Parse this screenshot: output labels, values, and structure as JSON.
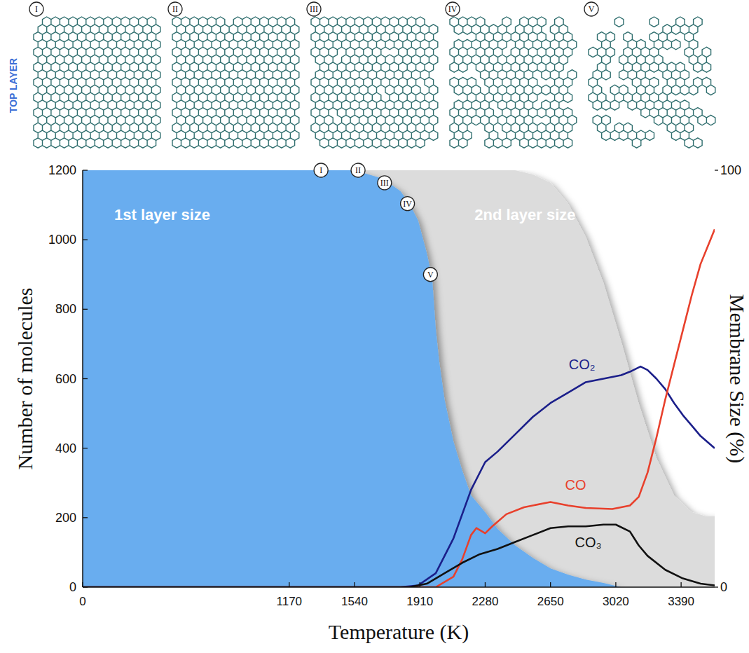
{
  "chart_data": {
    "type": "line",
    "side_label": "TOP LAYER",
    "x_label": "Temperature (K)",
    "y_label": "Number of molecules",
    "y2_label": "Membrane Size (%)",
    "xlim": [
      0,
      3580
    ],
    "xticks": [
      0,
      1170,
      1540,
      1910,
      2280,
      2650,
      3020,
      3390
    ],
    "ylim": [
      0,
      1200
    ],
    "yticks": [
      0,
      200,
      400,
      600,
      800,
      1000,
      1200
    ],
    "y2lim": [
      0,
      100
    ],
    "y2ticks": [
      0,
      100
    ],
    "grid": false,
    "series": [
      {
        "name": "2nd layer size",
        "type": "area",
        "axis": "y2",
        "color": "#dcdcdc",
        "x": [
          0,
          1170,
          1540,
          1700,
          1800,
          1850,
          1900,
          1950,
          1980,
          2000,
          2020,
          2050,
          2100,
          2150,
          2200,
          2280,
          2350,
          2450,
          2550,
          2650,
          2750,
          2850,
          2950,
          3050,
          3150,
          3250,
          3350,
          3450,
          3530,
          3580
        ],
        "values": [
          100,
          100,
          100,
          100,
          100,
          100,
          100,
          100,
          100,
          100,
          100,
          100,
          100,
          100,
          100,
          100,
          100,
          100,
          99,
          97,
          92,
          84,
          73,
          59,
          44,
          31,
          22,
          18,
          17,
          17
        ]
      },
      {
        "name": "1st layer size",
        "type": "area",
        "axis": "y2",
        "color": "#69adef",
        "x": [
          0,
          1170,
          1540,
          1700,
          1800,
          1850,
          1900,
          1950,
          1980,
          2000,
          2020,
          2050,
          2100,
          2150,
          2200,
          2280,
          2350,
          2450,
          2550,
          2650,
          2750,
          2850,
          2950,
          3050,
          3150,
          3250,
          3350,
          3450,
          3530,
          3580
        ],
        "values": [
          100,
          100,
          100,
          98,
          95,
          92,
          88,
          80,
          74,
          62,
          54,
          45,
          35,
          28,
          22,
          18,
          14,
          10,
          7,
          4.5,
          3,
          1.8,
          1,
          0,
          0,
          0,
          0,
          0,
          0,
          0
        ]
      },
      {
        "name": "CO₂",
        "type": "line",
        "color": "#1b1f8a",
        "x": [
          0,
          1800,
          1900,
          2000,
          2100,
          2200,
          2280,
          2350,
          2450,
          2550,
          2650,
          2750,
          2850,
          2950,
          3050,
          3100,
          3160,
          3200,
          3250,
          3300,
          3350,
          3400,
          3450,
          3500,
          3580
        ],
        "values": [
          0,
          0,
          5,
          40,
          140,
          280,
          360,
          390,
          440,
          490,
          530,
          560,
          590,
          600,
          610,
          620,
          635,
          625,
          600,
          570,
          530,
          495,
          465,
          435,
          400
        ]
      },
      {
        "name": "CO",
        "type": "line",
        "color": "#e8402c",
        "x": [
          0,
          2000,
          2100,
          2150,
          2200,
          2230,
          2280,
          2320,
          2400,
          2500,
          2650,
          2750,
          2850,
          3000,
          3100,
          3150,
          3200,
          3250,
          3300,
          3350,
          3400,
          3450,
          3500,
          3580
        ],
        "values": [
          0,
          0,
          30,
          80,
          150,
          170,
          155,
          175,
          210,
          230,
          245,
          235,
          228,
          225,
          235,
          260,
          330,
          430,
          540,
          640,
          740,
          840,
          930,
          1030
        ]
      },
      {
        "name": "CO₃",
        "type": "line",
        "color": "#111111",
        "x": [
          0,
          1850,
          1950,
          2050,
          2150,
          2250,
          2350,
          2450,
          2550,
          2650,
          2750,
          2850,
          2950,
          3020,
          3100,
          3150,
          3200,
          3300,
          3400,
          3500,
          3580
        ],
        "values": [
          0,
          0,
          10,
          40,
          70,
          95,
          110,
          130,
          150,
          170,
          175,
          175,
          180,
          180,
          160,
          120,
          90,
          50,
          25,
          10,
          5
        ]
      }
    ],
    "snapshots": {
      "labels": [
        "I",
        "II",
        "III",
        "IV",
        "V"
      ],
      "axis": "y2",
      "x": [
        1350,
        1560,
        1710,
        1840,
        1970
      ],
      "values": [
        100,
        100,
        97,
        92,
        75
      ]
    }
  }
}
